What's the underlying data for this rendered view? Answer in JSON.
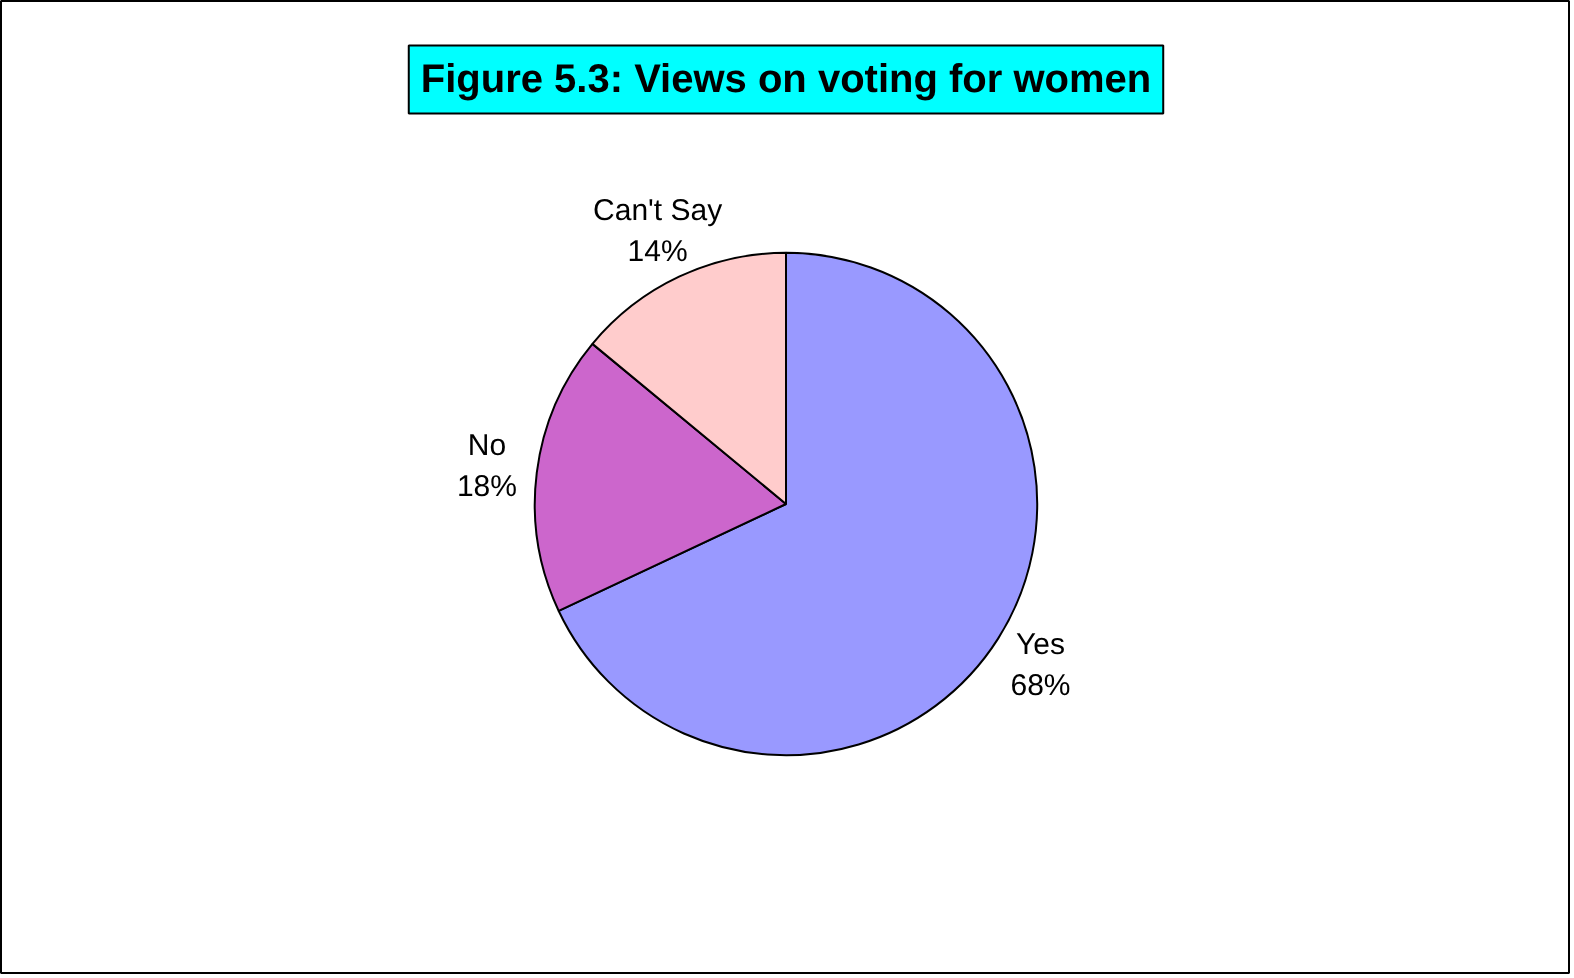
{
  "chart_data": {
    "type": "pie",
    "title": "Figure 5.3: Views on voting for women",
    "categories": [
      "Yes",
      "No",
      "Can't Say"
    ],
    "values": [
      68,
      18,
      14
    ],
    "value_labels": [
      "68%",
      "18%",
      "14%"
    ],
    "colors": [
      "#9999ff",
      "#cc66cc",
      "#ffcccc"
    ]
  }
}
